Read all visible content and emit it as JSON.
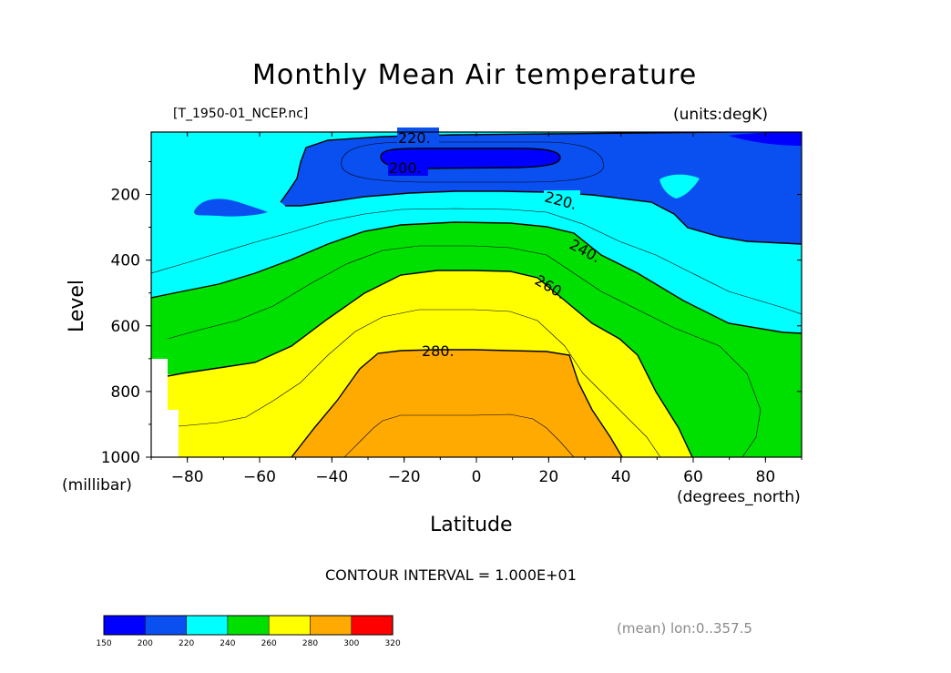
{
  "chart_data": {
    "type": "contour",
    "title": "Monthly Mean Air temperature",
    "source_label": "[T_1950-01_NCEP.nc]",
    "units_label": "(units:degK)",
    "xlabel": "Latitude",
    "x_units": "(degrees_north)",
    "ylabel": "Level",
    "y_units": "(millibar)",
    "xlim": [
      -90,
      90
    ],
    "ylim": [
      1000,
      10
    ],
    "x_ticks": [
      -80,
      -60,
      -40,
      -20,
      0,
      20,
      40,
      60,
      80
    ],
    "x_tick_labels": [
      "−80",
      "−60",
      "−40",
      "−20",
      "0",
      "20",
      "40",
      "60",
      "80"
    ],
    "y_ticks": [
      200,
      400,
      600,
      800,
      1000
    ],
    "y_tick_labels": [
      "200",
      "400",
      "600",
      "800",
      "1000"
    ],
    "contour_interval_text": "CONTOUR INTERVAL = 1.000E+01",
    "contour_labels": [
      "220.",
      "200.",
      "220.",
      "240.",
      "260.",
      "280."
    ],
    "colorbar": {
      "boundaries": [
        150,
        200,
        220,
        240,
        260,
        280,
        300,
        320
      ],
      "labels": [
        "150",
        "200",
        "220",
        "240",
        "260",
        "280",
        "300",
        "320"
      ],
      "colors": [
        "#0000ff",
        "#0a50f0",
        "#00ffff",
        "#00e000",
        "#ffff00",
        "#ffaa00",
        "#ff0000"
      ]
    },
    "footnote": "(mean) lon:0..357.5"
  }
}
